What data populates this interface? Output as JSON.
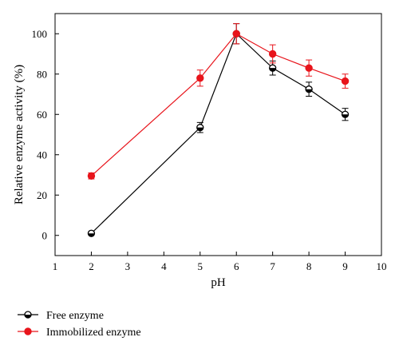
{
  "chart_data": {
    "type": "line",
    "xlabel": "pH",
    "ylabel": "Relative enzyme activity (%)",
    "xlim": [
      1,
      10
    ],
    "ylim": [
      -10,
      110
    ],
    "xticks": [
      1,
      2,
      3,
      4,
      5,
      6,
      7,
      8,
      9,
      10
    ],
    "yticks": [
      0,
      20,
      40,
      60,
      80,
      100
    ],
    "grid": false,
    "legend_position": "bottom-left",
    "series": [
      {
        "name": "Free enzyme",
        "color": "#000000",
        "marker": "half-filled-circle",
        "x": [
          2,
          5,
          6,
          7,
          8,
          9
        ],
        "y": [
          1,
          53.5,
          100,
          83,
          72.5,
          60
        ],
        "error": [
          0,
          2.5,
          5,
          3.5,
          3.5,
          3
        ]
      },
      {
        "name": "Immobilized enzyme",
        "color": "#e8141b",
        "marker": "filled-circle",
        "x": [
          2,
          5,
          6,
          7,
          8,
          9
        ],
        "y": [
          29.5,
          78,
          100,
          90,
          83,
          76.5
        ],
        "error": [
          1.5,
          4,
          5,
          4.5,
          4,
          3.5
        ]
      }
    ]
  }
}
